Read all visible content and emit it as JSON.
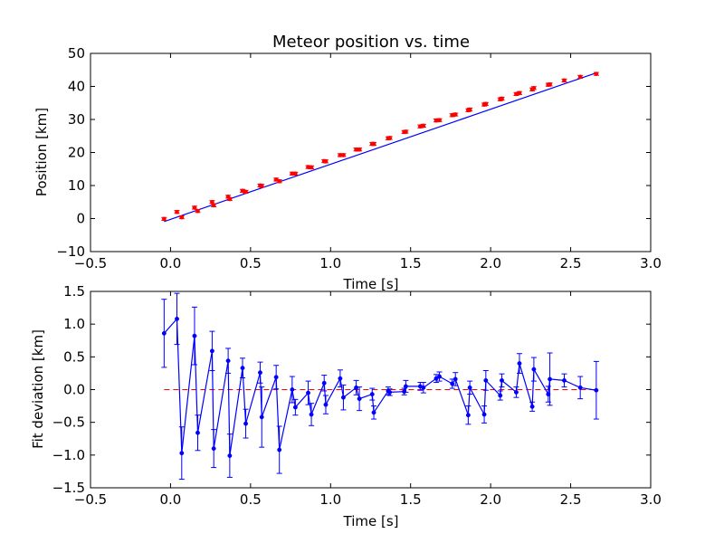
{
  "colors": {
    "axes": "#000000",
    "line": "#0000ff",
    "marker_top": "#ff0000",
    "zero_line": "#ff0000",
    "background": "#ffffff"
  },
  "chart_data": [
    {
      "type": "scatter",
      "title": "Meteor position vs. time",
      "xlabel": "Time [s]",
      "ylabel": "Position [km]",
      "xlim": [
        -0.5,
        3.0
      ],
      "ylim": [
        -10,
        50
      ],
      "xticks": [
        -0.5,
        0.0,
        0.5,
        1.0,
        1.5,
        2.0,
        2.5,
        3.0
      ],
      "xtick_labels": [
        "−0.5",
        "0.0",
        "0.5",
        "1.0",
        "1.5",
        "2.0",
        "2.5",
        "3.0"
      ],
      "yticks": [
        -10,
        0,
        10,
        20,
        30,
        40,
        50
      ],
      "ytick_labels": [
        "−10",
        "0",
        "10",
        "20",
        "30",
        "40",
        "50"
      ],
      "grid": false,
      "fit_line": {
        "x": [
          -0.04,
          2.66
        ],
        "y": [
          -0.9,
          44.1
        ]
      },
      "points": {
        "x": [
          -0.04,
          0.04,
          0.07,
          0.15,
          0.17,
          0.26,
          0.27,
          0.36,
          0.37,
          0.45,
          0.47,
          0.56,
          0.57,
          0.66,
          0.68,
          0.76,
          0.78,
          0.86,
          0.88,
          0.96,
          0.97,
          1.06,
          1.08,
          1.16,
          1.18,
          1.26,
          1.27,
          1.36,
          1.37,
          1.46,
          1.47,
          1.56,
          1.58,
          1.66,
          1.68,
          1.76,
          1.78,
          1.86,
          1.87,
          1.96,
          1.97,
          2.06,
          2.07,
          2.16,
          2.18,
          2.26,
          2.27,
          2.36,
          2.37,
          2.46,
          2.56,
          2.66
        ],
        "y": [
          -0.1,
          2.0,
          0.4,
          3.3,
          2.3,
          5.0,
          4.0,
          6.6,
          5.9,
          8.4,
          8.1,
          10.0,
          9.9,
          11.8,
          11.3,
          13.6,
          13.6,
          15.6,
          15.5,
          17.4,
          17.3,
          19.2,
          19.2,
          20.9,
          20.9,
          22.6,
          22.6,
          24.3,
          24.4,
          26.2,
          26.3,
          27.9,
          28.1,
          29.7,
          29.8,
          31.3,
          31.5,
          32.8,
          33.0,
          34.5,
          34.7,
          36.1,
          36.3,
          37.7,
          38.0,
          39.1,
          39.5,
          40.5,
          40.6,
          41.8,
          42.9,
          43.8
        ]
      }
    },
    {
      "type": "line",
      "title": "",
      "xlabel": "Time [s]",
      "ylabel": "Fit deviation [km]",
      "xlim": [
        -0.5,
        3.0
      ],
      "ylim": [
        -1.5,
        1.5
      ],
      "xticks": [
        -0.5,
        0.0,
        0.5,
        1.0,
        1.5,
        2.0,
        2.5,
        3.0
      ],
      "xtick_labels": [
        "−0.5",
        "0.0",
        "0.5",
        "1.0",
        "1.5",
        "2.0",
        "2.5",
        "3.0"
      ],
      "yticks": [
        -1.5,
        -1.0,
        -0.5,
        0.0,
        0.5,
        1.0,
        1.5
      ],
      "ytick_labels": [
        "−1.5",
        "−1.0",
        "−0.5",
        "0.0",
        "0.5",
        "1.0",
        "1.5"
      ],
      "grid": false,
      "zero_line": 0.0,
      "series": [
        {
          "x": [
            -0.04,
            0.04,
            0.07,
            0.15,
            0.17,
            0.26,
            0.27,
            0.36,
            0.37,
            0.45,
            0.47,
            0.56,
            0.57,
            0.66,
            0.68,
            0.76,
            0.78,
            0.86,
            0.88,
            0.96,
            0.97,
            1.06,
            1.08,
            1.16,
            1.18,
            1.26,
            1.27,
            1.36,
            1.37,
            1.46,
            1.47,
            1.56,
            1.58,
            1.66,
            1.68,
            1.76,
            1.78,
            1.86,
            1.87,
            1.96,
            1.97,
            2.06,
            2.07,
            2.16,
            2.18,
            2.26,
            2.27,
            2.36,
            2.37,
            2.46,
            2.56,
            2.66
          ],
          "y": [
            0.86,
            1.08,
            -0.97,
            0.82,
            -0.66,
            0.59,
            -0.9,
            0.44,
            -1.01,
            0.33,
            -0.52,
            0.26,
            -0.42,
            0.19,
            -0.92,
            0.0,
            -0.27,
            -0.05,
            -0.38,
            0.1,
            -0.23,
            0.17,
            -0.12,
            0.03,
            -0.14,
            -0.07,
            -0.35,
            -0.02,
            -0.04,
            -0.03,
            0.05,
            0.05,
            0.03,
            0.17,
            0.2,
            0.09,
            0.16,
            -0.39,
            0.03,
            -0.38,
            0.14,
            -0.09,
            0.14,
            -0.04,
            0.4,
            -0.26,
            0.31,
            -0.07,
            0.16,
            0.14,
            0.03,
            -0.01
          ],
          "yerr": [
            0.52,
            0.39,
            0.4,
            0.44,
            0.27,
            0.3,
            0.29,
            0.19,
            0.33,
            0.15,
            0.22,
            0.16,
            0.46,
            0.18,
            0.36,
            0.2,
            0.12,
            0.18,
            0.17,
            0.12,
            0.14,
            0.13,
            0.19,
            0.11,
            0.18,
            0.09,
            0.1,
            0.06,
            0.05,
            0.05,
            0.09,
            0.06,
            0.08,
            0.06,
            0.07,
            0.07,
            0.1,
            0.14,
            0.1,
            0.13,
            0.15,
            0.07,
            0.1,
            0.08,
            0.15,
            0.07,
            0.18,
            0.12,
            0.4,
            0.1,
            0.17,
            0.44
          ]
        }
      ]
    }
  ]
}
